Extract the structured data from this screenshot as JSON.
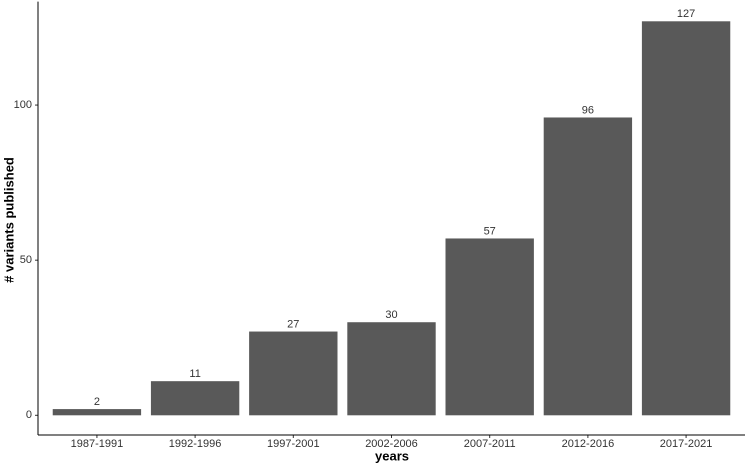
{
  "chart_data": {
    "type": "bar",
    "x_label": "years",
    "y_label": "# variants published",
    "categories": [
      "1987-1991",
      "1992-1996",
      "1997-2001",
      "2002-2006",
      "2007-2011",
      "2012-2016",
      "2017-2021"
    ],
    "values": [
      2,
      11,
      27,
      30,
      57,
      96,
      127
    ],
    "color": "#595959",
    "ylim": [
      -6.35,
      133.35
    ],
    "yticks": [
      0,
      50,
      100
    ],
    "grid": false
  }
}
